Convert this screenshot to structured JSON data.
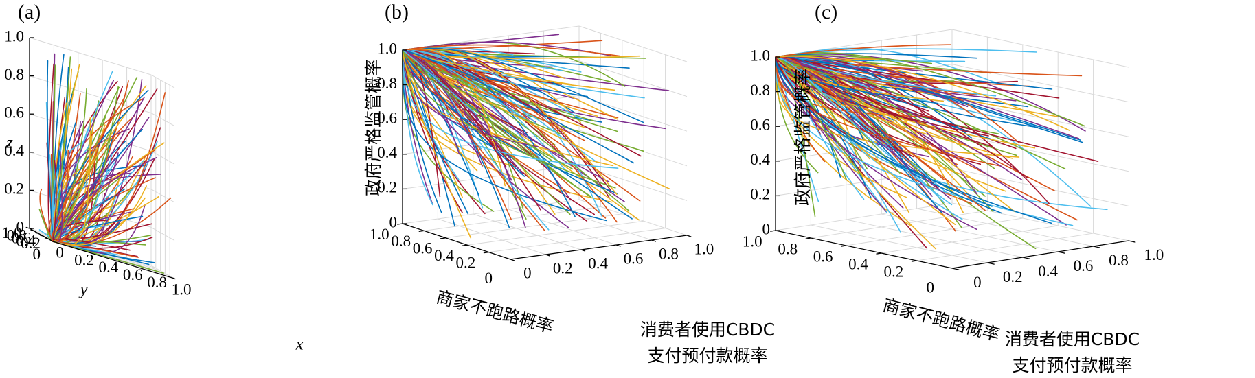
{
  "chart_data": [
    {
      "type": "line",
      "panel_label": "(a)",
      "xlabel": "x",
      "ylabel": "y",
      "zlabel": "z",
      "xlim": [
        0,
        1
      ],
      "ylim": [
        0,
        1
      ],
      "zlim": [
        0,
        1
      ],
      "x_ticks": [
        "0",
        "0.2",
        "0.4",
        "0.6",
        "0.8",
        "1.0"
      ],
      "y_ticks": [
        "0.2",
        "0.4",
        "0.6",
        "0.8",
        "1.0"
      ],
      "y_zero_tick": "0",
      "z_ticks": [
        "0",
        "0.2",
        "0.4",
        "0.6",
        "0.8",
        "1.0"
      ],
      "grid": true,
      "description_of_series": "about 150 evolutionary trajectories from random initial points in the unit cube, converging to (0,0,0)",
      "converges_to": [
        0,
        0,
        0
      ]
    },
    {
      "type": "line",
      "panel_label": "(b)",
      "xlabel_line1": "消费者使用CBDC",
      "xlabel_line2": "支付预付款概率",
      "ylabel": "商家不跑路概率",
      "zlabel": "政府严格监管概率",
      "xlim": [
        0,
        1
      ],
      "ylim": [
        0,
        1
      ],
      "zlim": [
        0,
        1
      ],
      "x_ticks": [
        "0",
        "0.2",
        "0.4",
        "0.6",
        "0.8",
        "1.0"
      ],
      "y_ticks": [
        "0.2",
        "0.4",
        "0.6",
        "0.8",
        "1.0"
      ],
      "y_zero_tick": "0",
      "z_ticks": [
        "0",
        "0.2",
        "0.4",
        "0.6",
        "0.8",
        "1.0"
      ],
      "grid": true,
      "converges_to": [
        0,
        1,
        1
      ]
    },
    {
      "type": "line",
      "panel_label": "(c)",
      "xlabel_line1": "消费者使用CBDC",
      "xlabel_line2": "支付预付款概率",
      "ylabel": "商家不跑路概率",
      "zlabel": "政府严格监管概率",
      "xlim": [
        0,
        1
      ],
      "ylim": [
        0,
        1
      ],
      "zlim": [
        0,
        1
      ],
      "x_ticks": [
        "0",
        "0.2",
        "0.4",
        "0.6",
        "0.8",
        "1.0"
      ],
      "y_ticks": [
        "0.2",
        "0.4",
        "0.6",
        "0.8",
        "1.0"
      ],
      "y_zero_tick": "0",
      "z_ticks": [
        "0",
        "0.2",
        "0.4",
        "0.6",
        "0.8",
        "1.0"
      ],
      "grid": true,
      "converges_to": [
        0,
        1,
        1
      ]
    }
  ],
  "colors": {
    "series_palette": [
      "#0072BD",
      "#D95319",
      "#EDB120",
      "#7E2F8E",
      "#77AC30",
      "#4DBEEE",
      "#A2142F"
    ],
    "axis": "#000000",
    "grid": "#d9d9d9"
  }
}
